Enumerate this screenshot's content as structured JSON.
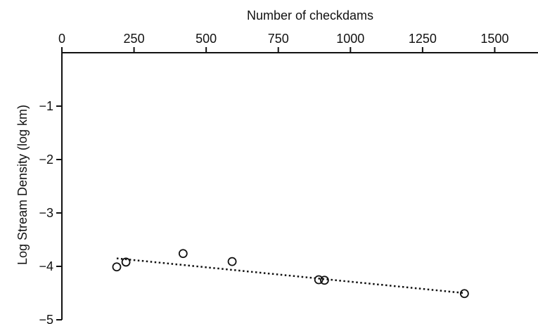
{
  "chart_data": {
    "type": "scatter",
    "title": "",
    "xlabel": "Number of checkdams",
    "ylabel": "Log Stream Density (log km)",
    "xlim": [
      0,
      1650
    ],
    "ylim": [
      -5,
      0
    ],
    "x_axis_position": "top",
    "x_ticks": [
      0,
      250,
      500,
      750,
      1000,
      1250,
      1500
    ],
    "x_tick_labels": [
      "0",
      "250",
      "500",
      "750",
      "1000",
      "1250",
      "1500"
    ],
    "y_ticks": [
      -1,
      -2,
      -3,
      -4,
      -5
    ],
    "y_tick_labels": [
      "−1",
      "−2",
      "−3",
      "−4",
      "−5"
    ],
    "grid": false,
    "legend": "none",
    "series": [
      {
        "points": [
          {
            "x": 190,
            "y": -4.01
          },
          {
            "x": 222,
            "y": -3.92
          },
          {
            "x": 420,
            "y": -3.76
          },
          {
            "x": 590,
            "y": -3.91
          },
          {
            "x": 890,
            "y": -4.25
          },
          {
            "x": 910,
            "y": -4.26
          },
          {
            "x": 1395,
            "y": -4.51
          }
        ]
      }
    ],
    "trendline": {
      "style": "dotted",
      "points": [
        {
          "x": 190,
          "y": -3.85
        },
        {
          "x": 1395,
          "y": -4.5
        }
      ]
    },
    "colors": {
      "marks": "#111111",
      "background": "#ffffff"
    }
  }
}
